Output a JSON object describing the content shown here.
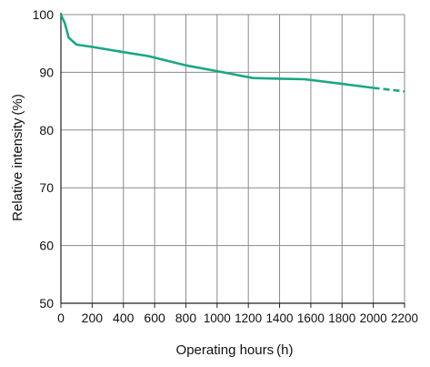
{
  "chart_data": {
    "type": "line",
    "title": "",
    "xlabel": "Operating hours (h)",
    "ylabel": "Relative intensity (%)",
    "xlim": [
      0,
      2200
    ],
    "ylim": [
      50,
      100
    ],
    "x_ticks": [
      0,
      200,
      400,
      600,
      800,
      1000,
      1200,
      1400,
      1600,
      1800,
      2000,
      2200
    ],
    "x_tick_labels": [
      "0",
      "200",
      "400",
      "600",
      "800",
      "1000",
      "1200",
      "1400",
      "1600",
      "1800",
      "2000",
      "2200"
    ],
    "y_ticks": [
      50,
      60,
      70,
      80,
      90,
      100
    ],
    "y_tick_labels": [
      "50",
      "60",
      "70",
      "80",
      "90",
      "100"
    ],
    "grid": true,
    "legend": "none",
    "line_color": "#1aa784",
    "series": [
      {
        "style": "solid",
        "x": [
          0,
          25,
          50,
          100,
          200,
          400,
          560,
          800,
          1000,
          1230,
          1400,
          1560,
          1800,
          2000
        ],
        "y": [
          100,
          98.5,
          96,
          94.8,
          94.4,
          93.5,
          92.8,
          91.2,
          90.2,
          89.0,
          88.9,
          88.8,
          88.0,
          87.3
        ]
      },
      {
        "style": "dashed",
        "x": [
          2000,
          2100,
          2200
        ],
        "y": [
          87.3,
          87.0,
          86.7
        ]
      }
    ]
  }
}
